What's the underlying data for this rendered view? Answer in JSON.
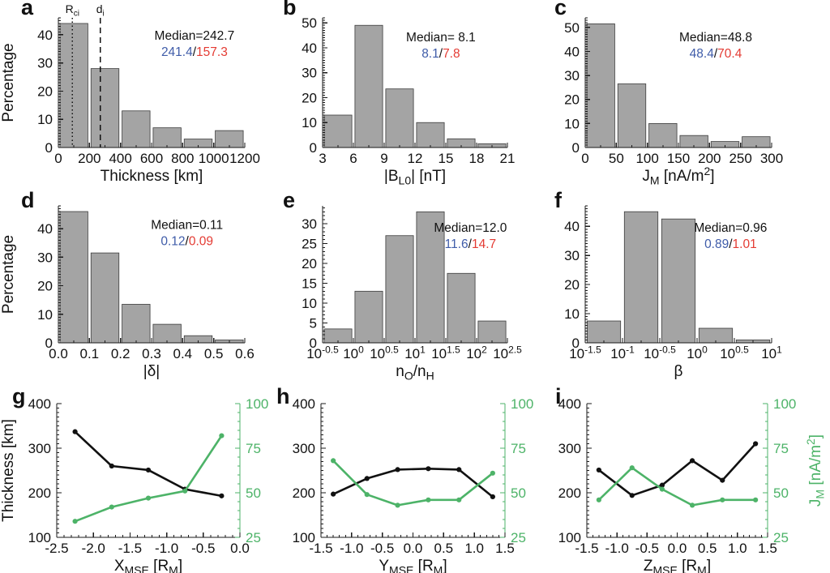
{
  "figure": {
    "description": "Nine-panel statistics figure: six percentage histograms (a-f) and three dual-axis line plots (g-i)",
    "colors": {
      "bar_fill": "#a4a4a4",
      "bar_edge": "#3c3c3c",
      "axis": "#1a1a1a",
      "black_series": "#111111",
      "green_series": "#4db368",
      "blue_text": "#3f5ca9",
      "red_text": "#e43b33",
      "background": "#ffffff"
    }
  },
  "chart_data": [
    {
      "id": "a",
      "letter": "a",
      "type": "bar",
      "ylabel": "Percentage",
      "xlabel": [
        {
          "t": "Thickness [km]"
        }
      ],
      "bin_edges": [
        0,
        200,
        400,
        600,
        800,
        1000,
        1200
      ],
      "values": [
        44,
        28,
        13,
        7,
        3,
        6
      ],
      "ylim": [
        0,
        46
      ],
      "yticks": [
        0,
        10,
        20,
        30,
        40
      ],
      "xticks": [
        0,
        200,
        400,
        600,
        800,
        1000,
        1200
      ],
      "xtick_labels": [
        "0",
        "200",
        "400",
        "600",
        "800",
        "1000",
        "1200"
      ],
      "annotation": {
        "median": "Median=242.7",
        "blue": "241.4",
        "sep": "/",
        "red": "157.3",
        "fx": 0.73,
        "fy": 0.17
      },
      "vlines": [
        {
          "x": 90,
          "style": "dotted",
          "label": [
            {
              "t": "R"
            },
            {
              "t": "ci",
              "sub": 1
            }
          ]
        },
        {
          "x": 270,
          "style": "dashed",
          "label": [
            {
              "t": "d"
            },
            {
              "t": "i",
              "sub": 1
            }
          ]
        }
      ]
    },
    {
      "id": "b",
      "letter": "b",
      "type": "bar",
      "ylabel": "",
      "xlabel": [
        {
          "t": "|B"
        },
        {
          "t": "L0",
          "sub": 1
        },
        {
          "t": "| [nT]"
        }
      ],
      "bin_edges": [
        3,
        6,
        9,
        12,
        15,
        18,
        21
      ],
      "values": [
        13,
        49,
        23.5,
        10,
        3.5,
        1.5
      ],
      "ylim": [
        0,
        52
      ],
      "yticks": [
        0,
        10,
        20,
        30,
        40,
        50
      ],
      "xticks": [
        3,
        6,
        9,
        12,
        15,
        18,
        21
      ],
      "xtick_labels": [
        "3",
        "6",
        "9",
        "12",
        "15",
        "18",
        "21"
      ],
      "annotation": {
        "median": "Median= 8.1",
        "blue": "8.1",
        "sep": "/",
        "red": "7.8",
        "fx": 0.64,
        "fy": 0.18
      }
    },
    {
      "id": "c",
      "letter": "c",
      "type": "bar",
      "ylabel": "",
      "xlabel": [
        {
          "t": "J"
        },
        {
          "t": "M",
          "sub": 1
        },
        {
          "t": " [nA/m"
        },
        {
          "t": "2",
          "sup": 1
        },
        {
          "t": "]"
        }
      ],
      "bin_edges": [
        0,
        50,
        100,
        150,
        200,
        250,
        300
      ],
      "values": [
        51.5,
        26.5,
        10,
        5,
        2.5,
        4.5
      ],
      "ylim": [
        0,
        54
      ],
      "yticks": [
        0,
        10,
        20,
        30,
        40,
        50
      ],
      "xticks": [
        0,
        50,
        100,
        150,
        200,
        250,
        300
      ],
      "xtick_labels": [
        "0",
        "50",
        "100",
        "150",
        "200",
        "250",
        "300"
      ],
      "annotation": {
        "median": "Median=48.8",
        "blue": "48.4",
        "sep": "/",
        "red": "70.4",
        "fx": 0.7,
        "fy": 0.18
      }
    },
    {
      "id": "d",
      "letter": "d",
      "type": "bar",
      "ylabel": "Percentage",
      "xlabel": [
        {
          "t": "|δ|"
        }
      ],
      "bin_edges": [
        0,
        0.1,
        0.2,
        0.3,
        0.4,
        0.5,
        0.6
      ],
      "values": [
        46,
        31.5,
        13.5,
        6.5,
        2.5,
        1
      ],
      "ylim": [
        0,
        48
      ],
      "yticks": [
        0,
        10,
        20,
        30,
        40
      ],
      "xticks": [
        0,
        0.1,
        0.2,
        0.3,
        0.4,
        0.5,
        0.6
      ],
      "xtick_labels": [
        "0.0",
        "0.1",
        "0.2",
        "0.3",
        "0.4",
        "0.5",
        "0.6"
      ],
      "annotation": {
        "median": "Median=0.11",
        "blue": "0.12",
        "sep": "/",
        "red": "0.09",
        "fx": 0.69,
        "fy": 0.17
      }
    },
    {
      "id": "e",
      "letter": "e",
      "type": "bar",
      "ylabel": "",
      "xlabel": [
        {
          "t": "n"
        },
        {
          "t": "O",
          "sub": 1
        },
        {
          "t": "/n"
        },
        {
          "t": "H",
          "sub": 1
        }
      ],
      "bin_edges": [
        -0.5,
        0,
        0.5,
        1,
        1.5,
        2,
        2.5
      ],
      "values": [
        3.5,
        13,
        27,
        33,
        17.5,
        5.5
      ],
      "ylim": [
        0,
        34.5
      ],
      "yticks": [
        0,
        5,
        10,
        15,
        20,
        25,
        30
      ],
      "xticks": [
        -0.5,
        0,
        0.5,
        1,
        1.5,
        2,
        2.5
      ],
      "xtick_labels": [
        [
          {
            "t": "10"
          },
          {
            "t": "-0.5",
            "sup": 1
          }
        ],
        [
          {
            "t": "10"
          },
          {
            "t": "0",
            "sup": 1
          }
        ],
        [
          {
            "t": "10"
          },
          {
            "t": "0.5",
            "sup": 1
          }
        ],
        [
          {
            "t": "10"
          },
          {
            "t": "1",
            "sup": 1
          }
        ],
        [
          {
            "t": "10"
          },
          {
            "t": "1.5",
            "sup": 1
          }
        ],
        [
          {
            "t": "10"
          },
          {
            "t": "2",
            "sup": 1
          }
        ],
        [
          {
            "t": "10"
          },
          {
            "t": "2.5",
            "sup": 1
          }
        ]
      ],
      "annotation": {
        "median": "Median=12.0",
        "blue": "11.6",
        "sep": "/",
        "red": "14.7",
        "fx": 0.8,
        "fy": 0.19
      }
    },
    {
      "id": "f",
      "letter": "f",
      "type": "bar",
      "ylabel": "",
      "xlabel": [
        {
          "t": "β"
        }
      ],
      "bin_edges": [
        -1.5,
        -1,
        -0.5,
        0,
        0.5,
        1
      ],
      "values": [
        7.5,
        45,
        42.5,
        5,
        1
      ],
      "ylim": [
        0,
        47
      ],
      "yticks": [
        0,
        10,
        20,
        30,
        40
      ],
      "xticks": [
        -1.5,
        -1,
        -0.5,
        0,
        0.5,
        1
      ],
      "xtick_labels": [
        [
          {
            "t": "10"
          },
          {
            "t": "-1.5",
            "sup": 1
          }
        ],
        [
          {
            "t": "10"
          },
          {
            "t": "-1",
            "sup": 1
          }
        ],
        [
          {
            "t": "10"
          },
          {
            "t": "-0.5",
            "sup": 1
          }
        ],
        [
          {
            "t": "10"
          },
          {
            "t": "0",
            "sup": 1
          }
        ],
        [
          {
            "t": "10"
          },
          {
            "t": "0.5",
            "sup": 1
          }
        ],
        [
          {
            "t": "10"
          },
          {
            "t": "1",
            "sup": 1
          }
        ]
      ],
      "annotation": {
        "median": "Median=0.96",
        "blue": "0.89",
        "sep": "/",
        "red": "1.01",
        "fx": 0.78,
        "fy": 0.19
      }
    },
    {
      "id": "g",
      "letter": "g",
      "type": "line",
      "x": [
        -2.25,
        -1.75,
        -1.25,
        -0.75,
        -0.25
      ],
      "series": [
        {
          "name": "Thickness [km]",
          "axis": "left",
          "color_key": "black_series",
          "values": [
            337,
            260,
            251,
            208,
            193
          ]
        },
        {
          "name": "J_M [nA/m2]",
          "axis": "right",
          "color_key": "green_series",
          "values": [
            34,
            42,
            47,
            51,
            82
          ]
        }
      ],
      "xlim": [
        -2.5,
        0
      ],
      "xticks": [
        -2.5,
        -2,
        -1.5,
        -1,
        -0.5,
        0
      ],
      "xtick_labels": [
        "-2.5",
        "-2.0",
        "-1.5",
        "-1.0",
        "-0.5",
        "0.0"
      ],
      "minor_x": 0.1,
      "ylim_left": [
        100,
        400
      ],
      "yticks_left": [
        100,
        200,
        300,
        400
      ],
      "minor_y_left": 10,
      "ylim_right": [
        25,
        100
      ],
      "yticks_right": [
        25,
        50,
        75,
        100
      ],
      "minor_y_right": 5,
      "xlabel": [
        {
          "t": "X"
        },
        {
          "t": "MSE",
          "sub": 1
        },
        {
          "t": " [R"
        },
        {
          "t": "M",
          "sub": 1
        },
        {
          "t": "]"
        }
      ],
      "ylabel_left": "Thickness [km]",
      "ylabel_right": null
    },
    {
      "id": "h",
      "letter": "h",
      "type": "line",
      "x": [
        -1.3,
        -0.75,
        -0.25,
        0.25,
        0.75,
        1.3
      ],
      "series": [
        {
          "name": "Thickness [km]",
          "axis": "left",
          "color_key": "black_series",
          "values": [
            197,
            232,
            252,
            254,
            252,
            191
          ]
        },
        {
          "name": "J_M [nA/m2]",
          "axis": "right",
          "color_key": "green_series",
          "values": [
            68,
            49,
            43,
            46,
            46,
            61
          ]
        }
      ],
      "xlim": [
        -1.5,
        1.5
      ],
      "xticks": [
        -1.5,
        -1,
        -0.5,
        0,
        0.5,
        1,
        1.5
      ],
      "xtick_labels": [
        "-1.5",
        "-1.0",
        "-0.5",
        "0.0",
        "0.5",
        "1.0",
        "1.5"
      ],
      "minor_x": 0.1,
      "ylim_left": [
        100,
        400
      ],
      "yticks_left": [
        100,
        200,
        300,
        400
      ],
      "minor_y_left": 10,
      "ylim_right": [
        25,
        100
      ],
      "yticks_right": [
        25,
        50,
        75,
        100
      ],
      "minor_y_right": 5,
      "xlabel": [
        {
          "t": "Y"
        },
        {
          "t": "MSE",
          "sub": 1
        },
        {
          "t": " [R"
        },
        {
          "t": "M",
          "sub": 1
        },
        {
          "t": "]"
        }
      ],
      "ylabel_left": "",
      "ylabel_right": null
    },
    {
      "id": "i",
      "letter": "i",
      "type": "line",
      "x": [
        -1.3,
        -0.75,
        -0.25,
        0.25,
        0.75,
        1.3
      ],
      "series": [
        {
          "name": "Thickness [km]",
          "axis": "left",
          "color_key": "black_series",
          "values": [
            251,
            194,
            217,
            272,
            228,
            310
          ]
        },
        {
          "name": "J_M [nA/m2]",
          "axis": "right",
          "color_key": "green_series",
          "values": [
            46,
            64,
            52,
            43,
            46,
            46
          ]
        }
      ],
      "xlim": [
        -1.5,
        1.5
      ],
      "xticks": [
        -1.5,
        -1,
        -0.5,
        0,
        0.5,
        1,
        1.5
      ],
      "xtick_labels": [
        "-1.5",
        "-1.0",
        "-0.5",
        "0.0",
        "0.5",
        "1.0",
        "1.5"
      ],
      "minor_x": 0.1,
      "ylim_left": [
        100,
        400
      ],
      "yticks_left": [
        100,
        200,
        300,
        400
      ],
      "minor_y_left": 10,
      "ylim_right": [
        25,
        100
      ],
      "yticks_right": [
        25,
        50,
        75,
        100
      ],
      "minor_y_right": 5,
      "xlabel": [
        {
          "t": "Z"
        },
        {
          "t": "MSE",
          "sub": 1
        },
        {
          "t": " [R"
        },
        {
          "t": "M",
          "sub": 1
        },
        {
          "t": "]"
        }
      ],
      "ylabel_left": "",
      "ylabel_right": [
        {
          "t": "J"
        },
        {
          "t": "M",
          "sub": 1
        },
        {
          "t": " [nA/m"
        },
        {
          "t": "2",
          "sup": 1
        },
        {
          "t": "]"
        }
      ]
    }
  ]
}
